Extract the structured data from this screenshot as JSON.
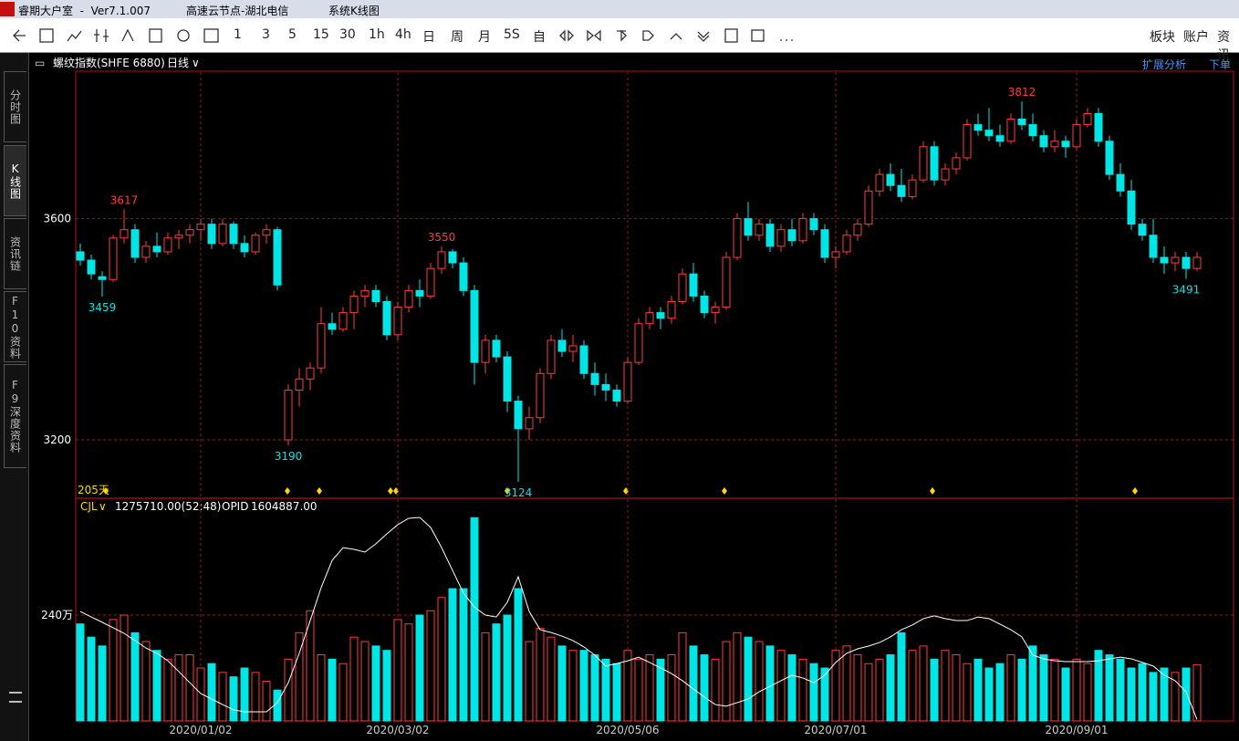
{
  "window": {
    "app_title": "睿期大户室  -  Ver7.1.007",
    "node": "高速云节点-湖北电信",
    "view": "系统K线图"
  },
  "toolbar": {
    "items": [
      "1",
      "3",
      "5",
      "15",
      "30",
      "1h",
      "4h",
      "日",
      "周",
      "月",
      "5S",
      "自"
    ],
    "right": [
      "板块",
      "账户",
      "资讯"
    ]
  },
  "sidebar": {
    "tabs": [
      "分时图",
      "K线图",
      "资讯链",
      "F10资料",
      "F9深度资料"
    ]
  },
  "header": {
    "symbol": "螺纹指数(SHFE 6880)",
    "period": "日线",
    "extend": "扩展分析",
    "order": "下单"
  },
  "chart_data": [
    {
      "type": "candlestick",
      "period_label": "205天",
      "up_color": "#ff3c3c",
      "down_color": "#00e6e6",
      "ylim": [
        3096,
        3865
      ],
      "yticks": [
        3200,
        3600
      ],
      "xticks": [
        {
          "value": 11,
          "label": "2020/01/02"
        },
        {
          "value": 29,
          "label": "2020/03/02"
        },
        {
          "value": 50,
          "label": "2020/05/06"
        },
        {
          "value": 69,
          "label": "2020/07/01"
        },
        {
          "value": 91,
          "label": "2020/09/01"
        }
      ],
      "grid": true,
      "highs": [
        3617,
        3550,
        3812
      ],
      "lows": [
        3459,
        3190,
        3124,
        3491
      ],
      "candles": [
        [
          3540,
          3555,
          3515,
          3525
        ],
        [
          3525,
          3535,
          3490,
          3500
        ],
        [
          3495,
          3505,
          3459,
          3490
        ],
        [
          3490,
          3570,
          3485,
          3565
        ],
        [
          3565,
          3617,
          3555,
          3580
        ],
        [
          3580,
          3590,
          3520,
          3530
        ],
        [
          3530,
          3560,
          3520,
          3550
        ],
        [
          3550,
          3575,
          3530,
          3540
        ],
        [
          3540,
          3575,
          3535,
          3565
        ],
        [
          3565,
          3580,
          3545,
          3570
        ],
        [
          3570,
          3590,
          3555,
          3580
        ],
        [
          3580,
          3600,
          3560,
          3590
        ],
        [
          3590,
          3600,
          3545,
          3555
        ],
        [
          3555,
          3600,
          3550,
          3590
        ],
        [
          3590,
          3595,
          3545,
          3555
        ],
        [
          3555,
          3570,
          3530,
          3540
        ],
        [
          3540,
          3575,
          3535,
          3570
        ],
        [
          3570,
          3590,
          3555,
          3580
        ],
        [
          3580,
          3585,
          3470,
          3480
        ],
        [
          3200,
          3300,
          3190,
          3290
        ],
        [
          3290,
          3330,
          3260,
          3310
        ],
        [
          3310,
          3340,
          3290,
          3330
        ],
        [
          3330,
          3440,
          3320,
          3410
        ],
        [
          3410,
          3430,
          3390,
          3400
        ],
        [
          3400,
          3440,
          3395,
          3430
        ],
        [
          3430,
          3470,
          3400,
          3460
        ],
        [
          3460,
          3480,
          3440,
          3470
        ],
        [
          3470,
          3480,
          3440,
          3450
        ],
        [
          3450,
          3460,
          3380,
          3390
        ],
        [
          3390,
          3450,
          3380,
          3440
        ],
        [
          3440,
          3480,
          3430,
          3470
        ],
        [
          3470,
          3490,
          3440,
          3460
        ],
        [
          3460,
          3520,
          3455,
          3510
        ],
        [
          3510,
          3550,
          3500,
          3540
        ],
        [
          3540,
          3545,
          3510,
          3520
        ],
        [
          3520,
          3530,
          3460,
          3470
        ],
        [
          3470,
          3480,
          3300,
          3340
        ],
        [
          3340,
          3390,
          3320,
          3380
        ],
        [
          3380,
          3390,
          3340,
          3350
        ],
        [
          3350,
          3360,
          3250,
          3270
        ],
        [
          3270,
          3280,
          3124,
          3220
        ],
        [
          3220,
          3260,
          3200,
          3240
        ],
        [
          3240,
          3330,
          3230,
          3320
        ],
        [
          3320,
          3390,
          3310,
          3380
        ],
        [
          3380,
          3400,
          3350,
          3360
        ],
        [
          3360,
          3390,
          3340,
          3370
        ],
        [
          3370,
          3380,
          3310,
          3320
        ],
        [
          3320,
          3340,
          3280,
          3300
        ],
        [
          3300,
          3320,
          3270,
          3290
        ],
        [
          3290,
          3300,
          3260,
          3270
        ],
        [
          3270,
          3350,
          3265,
          3340
        ],
        [
          3340,
          3420,
          3335,
          3410
        ],
        [
          3410,
          3440,
          3400,
          3430
        ],
        [
          3430,
          3440,
          3400,
          3420
        ],
        [
          3420,
          3460,
          3410,
          3450
        ],
        [
          3450,
          3510,
          3445,
          3500
        ],
        [
          3500,
          3520,
          3450,
          3460
        ],
        [
          3460,
          3470,
          3420,
          3430
        ],
        [
          3430,
          3450,
          3410,
          3440
        ],
        [
          3440,
          3540,
          3435,
          3530
        ],
        [
          3530,
          3610,
          3525,
          3600
        ],
        [
          3600,
          3630,
          3560,
          3570
        ],
        [
          3570,
          3600,
          3560,
          3590
        ],
        [
          3590,
          3600,
          3540,
          3550
        ],
        [
          3550,
          3590,
          3540,
          3580
        ],
        [
          3580,
          3600,
          3550,
          3560
        ],
        [
          3560,
          3610,
          3555,
          3600
        ],
        [
          3600,
          3610,
          3570,
          3580
        ],
        [
          3580,
          3590,
          3520,
          3530
        ],
        [
          3530,
          3550,
          3510,
          3540
        ],
        [
          3540,
          3580,
          3535,
          3570
        ],
        [
          3570,
          3600,
          3560,
          3590
        ],
        [
          3590,
          3660,
          3585,
          3650
        ],
        [
          3650,
          3690,
          3640,
          3680
        ],
        [
          3680,
          3700,
          3650,
          3660
        ],
        [
          3660,
          3690,
          3630,
          3640
        ],
        [
          3640,
          3680,
          3635,
          3670
        ],
        [
          3670,
          3740,
          3665,
          3730
        ],
        [
          3730,
          3740,
          3660,
          3670
        ],
        [
          3670,
          3700,
          3660,
          3690
        ],
        [
          3690,
          3720,
          3680,
          3710
        ],
        [
          3710,
          3780,
          3705,
          3770
        ],
        [
          3770,
          3790,
          3750,
          3760
        ],
        [
          3760,
          3800,
          3740,
          3750
        ],
        [
          3750,
          3770,
          3730,
          3740
        ],
        [
          3740,
          3790,
          3735,
          3780
        ],
        [
          3780,
          3812,
          3760,
          3770
        ],
        [
          3770,
          3790,
          3740,
          3750
        ],
        [
          3750,
          3760,
          3720,
          3730
        ],
        [
          3730,
          3760,
          3720,
          3740
        ],
        [
          3740,
          3750,
          3710,
          3730
        ],
        [
          3730,
          3780,
          3725,
          3770
        ],
        [
          3770,
          3800,
          3765,
          3790
        ],
        [
          3790,
          3800,
          3730,
          3740
        ],
        [
          3740,
          3750,
          3670,
          3680
        ],
        [
          3680,
          3700,
          3640,
          3650
        ],
        [
          3650,
          3670,
          3580,
          3590
        ],
        [
          3590,
          3600,
          3560,
          3570
        ],
        [
          3570,
          3600,
          3520,
          3530
        ],
        [
          3530,
          3550,
          3500,
          3520
        ],
        [
          3520,
          3540,
          3505,
          3530
        ],
        [
          3530,
          3540,
          3491,
          3510
        ],
        [
          3510,
          3540,
          3505,
          3530
        ]
      ]
    },
    {
      "type": "bar",
      "indicator": "CJL",
      "volume_text": "1275710.00(52:48)",
      "opid_name": "OPID",
      "opid_text": "1604887.00",
      "ylim": [
        0,
        503
      ],
      "yticks": [
        {
          "value": 240,
          "label": "240万"
        }
      ],
      "y2lim": [
        1600000,
        2400000
      ],
      "series": [
        {
          "name": "CJL",
          "values": [
            220,
            190,
            170,
            230,
            240,
            200,
            180,
            160,
            140,
            150,
            150,
            120,
            130,
            110,
            100,
            120,
            110,
            90,
            70,
            140,
            200,
            250,
            150,
            140,
            130,
            190,
            180,
            170,
            160,
            230,
            220,
            240,
            250,
            280,
            300,
            300,
            461,
            200,
            220,
            240,
            300,
            180,
            210,
            190,
            170,
            160,
            160,
            150,
            140,
            130,
            160,
            140,
            150,
            140,
            150,
            200,
            170,
            150,
            140,
            180,
            200,
            190,
            180,
            170,
            160,
            150,
            140,
            130,
            120,
            160,
            170,
            150,
            130,
            140,
            150,
            200,
            160,
            170,
            140,
            160,
            150,
            130,
            140,
            120,
            130,
            150,
            140,
            170,
            150,
            140,
            120,
            140,
            130,
            160,
            150,
            140,
            120,
            130,
            110,
            120,
            110,
            120,
            127.571
          ]
        },
        {
          "name": "OPID",
          "color": "#ffffff",
          "axis": "y2",
          "values": [
            1995000,
            1975000,
            1956000,
            1936000,
            1916000,
            1890000,
            1863000,
            1844000,
            1817000,
            1778000,
            1738000,
            1699000,
            1679000,
            1659000,
            1640000,
            1633000,
            1633000,
            1633000,
            1666000,
            1738000,
            1844000,
            1962000,
            2081000,
            2179000,
            2225000,
            2219000,
            2209000,
            2239000,
            2275000,
            2308000,
            2331000,
            2334000,
            2298000,
            2225000,
            2143000,
            2061000,
            2011000,
            1982000,
            1975000,
            2028000,
            2120000,
            1995000,
            1929000,
            1919000,
            1906000,
            1890000,
            1867000,
            1837000,
            1798000,
            1807000,
            1817000,
            1830000,
            1811000,
            1791000,
            1771000,
            1745000,
            1715000,
            1686000,
            1659000,
            1653000,
            1666000,
            1679000,
            1705000,
            1725000,
            1745000,
            1765000,
            1755000,
            1738000,
            1765000,
            1811000,
            1844000,
            1860000,
            1870000,
            1883000,
            1903000,
            1929000,
            1946000,
            1969000,
            1979000,
            1969000,
            1962000,
            1962000,
            1975000,
            1969000,
            1949000,
            1929000,
            1903000,
            1837000,
            1824000,
            1817000,
            1814000,
            1814000,
            1814000,
            1817000,
            1824000,
            1830000,
            1824000,
            1811000,
            1798000,
            1765000,
            1745000,
            1705000,
            1604887
          ]
        }
      ]
    }
  ]
}
